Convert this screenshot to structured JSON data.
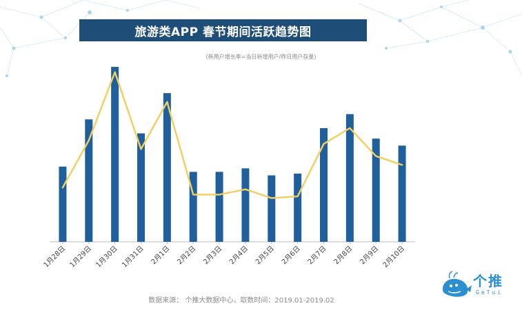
{
  "header": {
    "title": "旅游类APP  春节期间活跃趋势图",
    "subtitle": "(新用户增长率=当日新增用户/昨日用户存量)"
  },
  "footer": {
    "source": "数据来源：  个推大数据中心，取数时间：2019.01-2019.02"
  },
  "logo": {
    "name": "个推",
    "sub": "GeTui"
  },
  "colors": {
    "bar": "#1e5f9c",
    "line": "#f2cf62",
    "title_bg": "#1e4d78",
    "axis": "#bbbbbb",
    "logo": "#2e8fcf"
  },
  "chart_data": {
    "type": "bar",
    "categories": [
      "1月28日",
      "1月29日",
      "1月30日",
      "1月31日",
      "2月1日",
      "2月2日",
      "2月3日",
      "2月4日",
      "2月5日",
      "2月6日",
      "2月7日",
      "2月8日",
      "2月9日",
      "2月10日"
    ],
    "series": [
      {
        "type": "bar",
        "values": [
          43,
          70,
          100,
          62,
          85,
          40,
          40,
          42,
          38,
          39,
          65,
          73,
          59,
          55
        ]
      },
      {
        "type": "line",
        "values": [
          31,
          58,
          97,
          53,
          80,
          27,
          27,
          30,
          25,
          26,
          56,
          65,
          49,
          44
        ]
      }
    ],
    "ylim": [
      0,
      102
    ],
    "y_axis_visible": false,
    "grid": false,
    "legend": "none",
    "xlabel": "",
    "ylabel": ""
  }
}
